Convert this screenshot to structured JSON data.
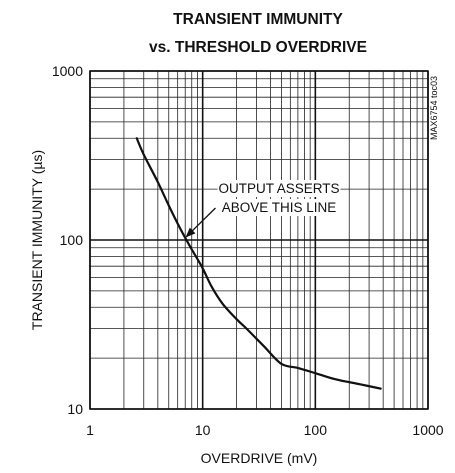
{
  "chart_data": {
    "type": "line",
    "title": "TRANSIENT IMMUNITY",
    "subtitle": "vs. THRESHOLD OVERDRIVE",
    "xlabel": "OVERDRIVE (mV)",
    "ylabel": "TRANSIENT IMMUNITY (µs)",
    "xscale": "log",
    "yscale": "log",
    "xlim": [
      1,
      1000
    ],
    "ylim": [
      10,
      1000
    ],
    "x_ticks": [
      {
        "value": 1,
        "label": "1"
      },
      {
        "value": 10,
        "label": "10"
      },
      {
        "value": 100,
        "label": "100"
      },
      {
        "value": 1000,
        "label": "1000"
      }
    ],
    "y_ticks": [
      {
        "value": 10,
        "label": "10"
      },
      {
        "value": 100,
        "label": "100"
      },
      {
        "value": 1000,
        "label": "1000"
      }
    ],
    "grid": true,
    "series": [
      {
        "points": [
          {
            "x": 2.6,
            "y": 400
          },
          {
            "x": 3.0,
            "y": 320
          },
          {
            "x": 4.0,
            "y": 220
          },
          {
            "x": 5.0,
            "y": 160
          },
          {
            "x": 6.0,
            "y": 125
          },
          {
            "x": 7.0,
            "y": 103
          },
          {
            "x": 8.0,
            "y": 88
          },
          {
            "x": 10.0,
            "y": 68
          },
          {
            "x": 12.0,
            "y": 53
          },
          {
            "x": 15.0,
            "y": 42
          },
          {
            "x": 20.0,
            "y": 34
          },
          {
            "x": 25.0,
            "y": 29.5
          },
          {
            "x": 35.0,
            "y": 23.5
          },
          {
            "x": 50.0,
            "y": 18.5
          },
          {
            "x": 70.0,
            "y": 17.5
          },
          {
            "x": 100.0,
            "y": 16.3
          },
          {
            "x": 150.0,
            "y": 15.0
          },
          {
            "x": 250.0,
            "y": 14.0
          },
          {
            "x": 380.0,
            "y": 13.2
          }
        ]
      }
    ],
    "annotation": {
      "lines": [
        "OUTPUT ASSERTS",
        "ABOVE THIS LINE"
      ],
      "arrow_target": {
        "x": 7.0,
        "y": 103
      }
    },
    "watermark": "MAX6754 toc03"
  }
}
